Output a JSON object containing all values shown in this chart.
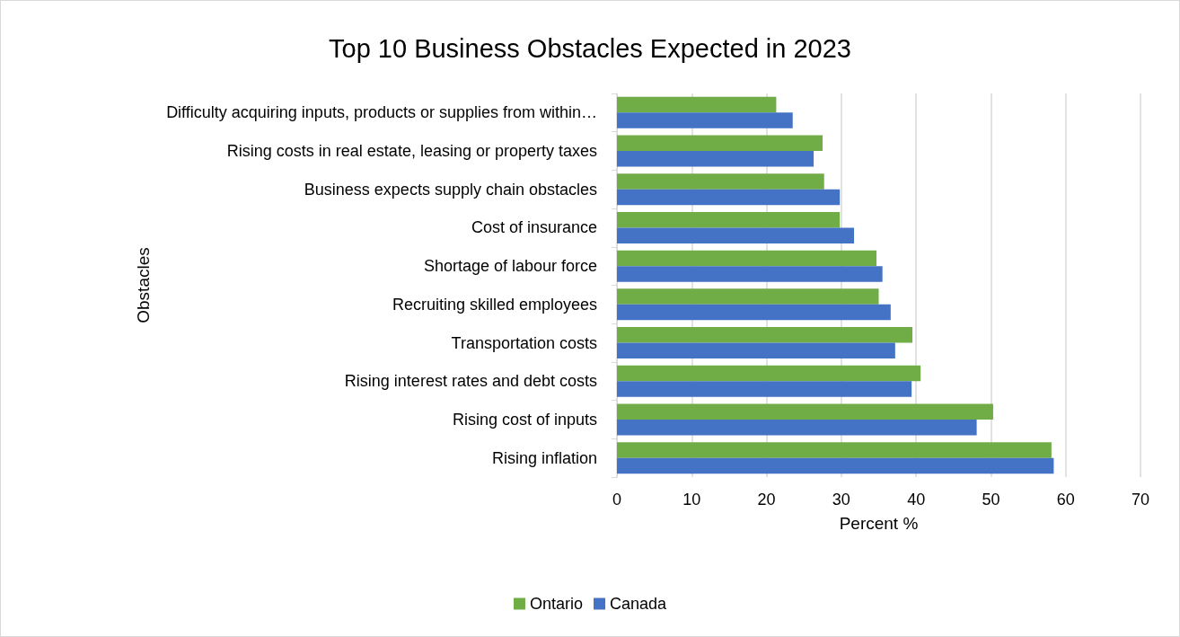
{
  "chart_data": {
    "type": "bar",
    "orientation": "horizontal",
    "title": "Top 10 Business Obstacles Expected in 2023",
    "xlabel": "Percent %",
    "ylabel": "Obstacles",
    "categories": [
      "Difficulty acquiring inputs, products or supplies from within…",
      "Rising costs in real estate, leasing or property taxes",
      "Business expects supply chain obstacles",
      "Cost of insurance",
      "Shortage of labour force",
      "Recruiting skilled employees",
      "Transportation costs",
      "Rising interest rates and debt costs",
      "Rising cost of inputs",
      "Rising inflation"
    ],
    "series": [
      {
        "name": "Ontario",
        "color": "#70ad47",
        "values": [
          21.3,
          27.5,
          27.7,
          29.8,
          34.7,
          35.0,
          39.5,
          40.6,
          50.3,
          58.1
        ]
      },
      {
        "name": "Canada",
        "color": "#4472c4",
        "values": [
          23.5,
          26.3,
          29.8,
          31.7,
          35.5,
          36.6,
          37.2,
          39.4,
          48.1,
          58.4
        ]
      }
    ],
    "xlim": [
      0,
      70
    ],
    "xticks": [
      0,
      10,
      20,
      30,
      40,
      50,
      60,
      70
    ],
    "grid": "x",
    "legend": "bottom"
  }
}
